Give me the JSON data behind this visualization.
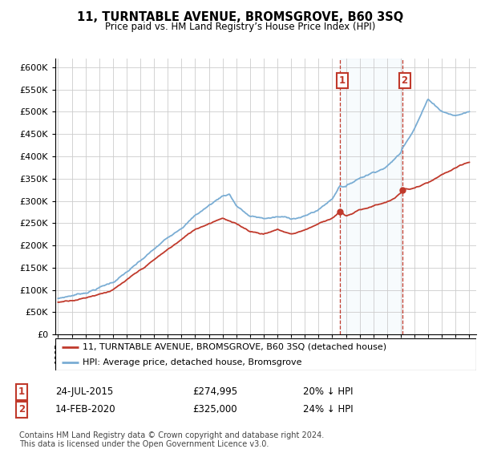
{
  "title": "11, TURNTABLE AVENUE, BROMSGROVE, B60 3SQ",
  "subtitle": "Price paid vs. HM Land Registry’s House Price Index (HPI)",
  "hpi_label": "HPI: Average price, detached house, Bromsgrove",
  "property_label": "11, TURNTABLE AVENUE, BROMSGROVE, B60 3SQ (detached house)",
  "hpi_color": "#7aadd4",
  "property_color": "#c0392b",
  "vline_color": "#c0392b",
  "shade_color": "#d6eaf8",
  "ylim_max": 620000,
  "yticks": [
    0,
    50000,
    100000,
    150000,
    200000,
    250000,
    300000,
    350000,
    400000,
    450000,
    500000,
    550000,
    600000
  ],
  "ytick_labels": [
    "£0",
    "£50K",
    "£100K",
    "£150K",
    "£200K",
    "£250K",
    "£300K",
    "£350K",
    "£400K",
    "£450K",
    "£500K",
    "£550K",
    "£600K"
  ],
  "sale1_date": 2015.56,
  "sale1_price": 274995,
  "sale2_date": 2020.12,
  "sale2_price": 325000,
  "footer": "Contains HM Land Registry data © Crown copyright and database right 2024.\nThis data is licensed under the Open Government Licence v3.0."
}
